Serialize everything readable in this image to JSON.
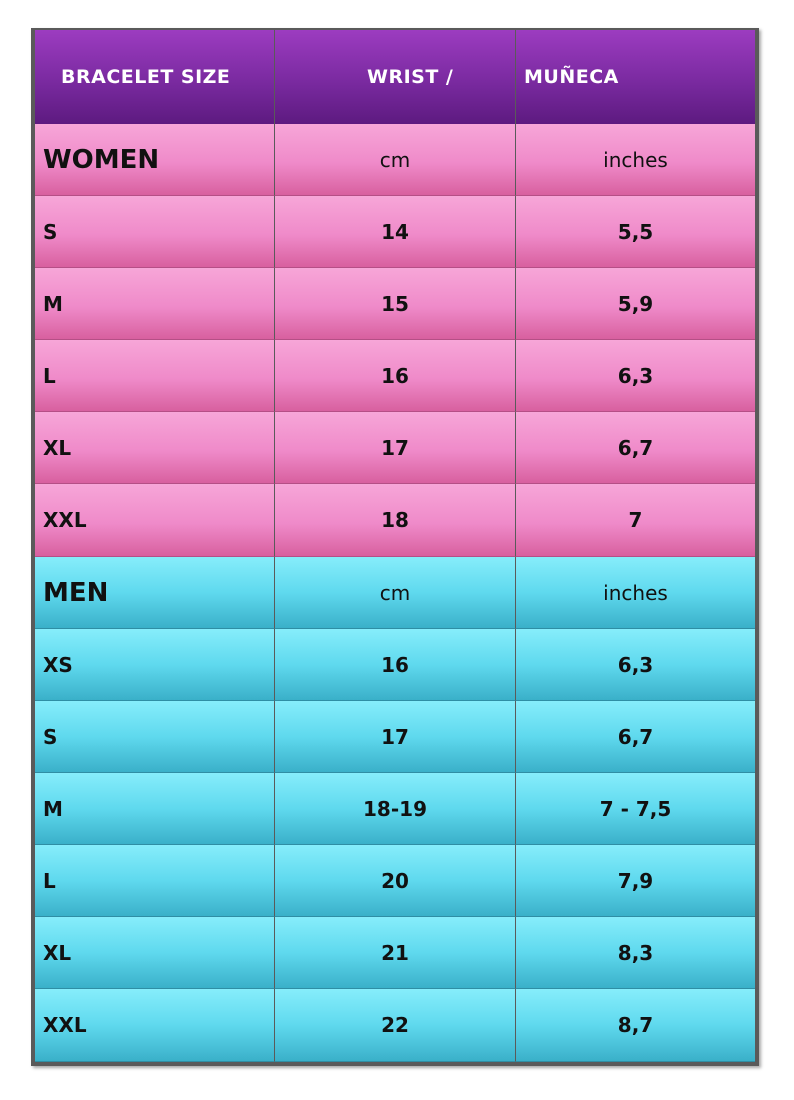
{
  "header": {
    "col1": "BRACELET SIZE",
    "col2": "WRIST /",
    "col3": "MUÑECA"
  },
  "women": {
    "title": "WOMEN",
    "unit_cm": "cm",
    "unit_in": "inches",
    "rows": [
      {
        "size": "S",
        "cm": "14",
        "in": "5,5"
      },
      {
        "size": "M",
        "cm": "15",
        "in": "5,9"
      },
      {
        "size": "L",
        "cm": "16",
        "in": "6,3"
      },
      {
        "size": "XL",
        "cm": "17",
        "in": "6,7"
      },
      {
        "size": "XXL",
        "cm": "18",
        "in": "7"
      }
    ]
  },
  "men": {
    "title": "MEN",
    "unit_cm": "cm",
    "unit_in": "inches",
    "rows": [
      {
        "size": "XS",
        "cm": "16",
        "in": "6,3"
      },
      {
        "size": "S",
        "cm": "17",
        "in": "6,7"
      },
      {
        "size": "M",
        "cm": "18-19",
        "in": "7 - 7,5"
      },
      {
        "size": "L",
        "cm": "20",
        "in": "7,9"
      },
      {
        "size": "XL",
        "cm": "21",
        "in": "8,3"
      },
      {
        "size": "XXL",
        "cm": "22",
        "in": "8,7"
      }
    ]
  },
  "colors": {
    "header": "#7a2aa0",
    "women": "#ef8ac9",
    "men": "#5fd9ee"
  }
}
